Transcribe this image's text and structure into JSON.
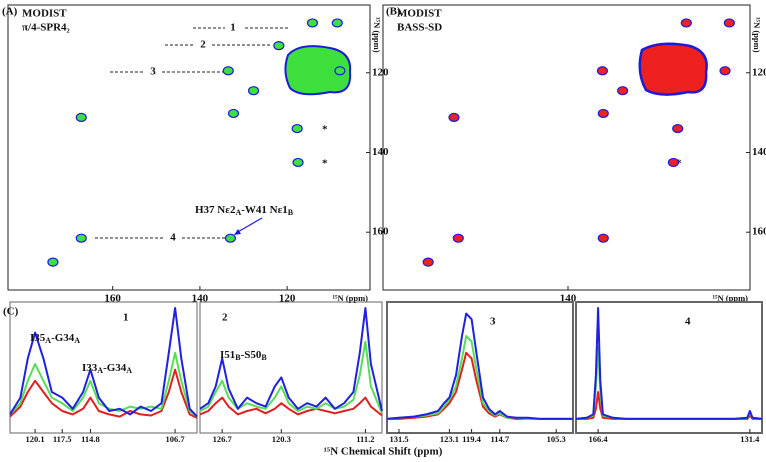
{
  "panels": {
    "A": {
      "label": "(A)",
      "legend": [
        {
          "name": "MODIST",
          "color": "#1c1cd8"
        },
        {
          "name": "π/4-SPR4₂",
          "color": "#2fd02f"
        }
      ],
      "xlim": [
        184,
        101
      ],
      "xticks": [
        160,
        140,
        120
      ],
      "ylim": [
        103,
        174.5
      ],
      "yticks": [
        120,
        140,
        160
      ],
      "x_label": "¹⁵N (ppm)",
      "y_label": "¹⁵N (ppm)",
      "peak_color": "#3ee03e",
      "peaks": [
        {
          "x": 114.2,
          "y": 107.5
        },
        {
          "x": 108.5,
          "y": 107.5
        },
        {
          "x": 121.9,
          "y": 113.2
        },
        {
          "x": 133.5,
          "y": 119.5
        },
        {
          "x": 127.7,
          "y": 124.5
        },
        {
          "x": 107.9,
          "y": 119.5
        },
        {
          "x": 132.3,
          "y": 130.2
        },
        {
          "x": 167.2,
          "y": 131.2
        },
        {
          "x": 117.7,
          "y": 134
        },
        {
          "x": 117.5,
          "y": 142.5
        },
        {
          "x": 133,
          "y": 161.5
        },
        {
          "x": 167.2,
          "y": 161.5
        },
        {
          "x": 173.7,
          "y": 167.5
        }
      ],
      "annotations": [
        "1",
        "2",
        "3",
        "4"
      ],
      "stars": [
        "*",
        "*"
      ],
      "assignment": [
        {
          "text": "H37 Nε2"
        },
        {
          "sub": "A"
        },
        {
          "text": "-W41 Nε1"
        },
        {
          "sub": "B"
        }
      ]
    },
    "B": {
      "label": "(B)",
      "legend": [
        {
          "name": "MODIST",
          "color": "#1c1cd8"
        },
        {
          "name": "BASS-SD",
          "color": "#e01c1c"
        }
      ],
      "xlim": [
        183,
        97.7
      ],
      "xticks": [
        140
      ],
      "ylim": [
        103,
        174.5
      ],
      "yticks": [
        120,
        140,
        160
      ],
      "x_label": "¹⁵N (ppm)",
      "y_label": "¹⁵N (ppm)",
      "peak_color": "#ee2020",
      "peaks": [
        {
          "x": 112.5,
          "y": 107.5
        },
        {
          "x": 102.5,
          "y": 107.5
        },
        {
          "x": 132,
          "y": 119.5
        },
        {
          "x": 127.3,
          "y": 124.5
        },
        {
          "x": 103.5,
          "y": 119.5
        },
        {
          "x": 131.8,
          "y": 130.2
        },
        {
          "x": 166.5,
          "y": 131.2
        },
        {
          "x": 114.5,
          "y": 134
        },
        {
          "x": 115.5,
          "y": 142.5
        },
        {
          "x": 131.8,
          "y": 161.5
        },
        {
          "x": 165.5,
          "y": 161.5
        },
        {
          "x": 172.5,
          "y": 167.5
        }
      ],
      "stars": [
        "*",
        "*"
      ]
    },
    "C": {
      "label": "(C)",
      "x_label": "¹⁵N Chemical Shift (ppm)",
      "ylim": [
        0,
        100
      ],
      "peak_labels": [
        [
          {
            "text": "I35"
          },
          {
            "sub": "A"
          },
          {
            "text": "-G34"
          },
          {
            "sub": "A"
          }
        ],
        [
          {
            "text": "I33"
          },
          {
            "sub": "A"
          },
          {
            "text": "-G34"
          },
          {
            "sub": "A"
          }
        ],
        [
          {
            "text": "I51"
          },
          {
            "sub": "B"
          },
          {
            "text": "-S50"
          },
          {
            "sub": "B"
          }
        ]
      ],
      "strips": [
        {
          "label": "1",
          "xlim": [
            122.5,
            104.6
          ],
          "xticks": [
            120.1,
            117.5,
            114.8,
            106.7
          ],
          "x": [
            122.5,
            121.5,
            120.8,
            120.1,
            119.3,
            118.5,
            117.5,
            116.5,
            115.5,
            114.8,
            114.0,
            113,
            112,
            111,
            110,
            109,
            108,
            107.3,
            106.7,
            106.1,
            105.3,
            104.6
          ],
          "series": [
            {
              "color": "#2020e0",
              "values": [
                5,
                20,
                55,
                78,
                55,
                25,
                20,
                10,
                25,
                45,
                20,
                8,
                10,
                5,
                12,
                8,
                15,
                60,
                100,
                55,
                10,
                3
              ]
            },
            {
              "color": "#55dd55",
              "values": [
                5,
                15,
                35,
                50,
                35,
                20,
                15,
                8,
                20,
                35,
                15,
                10,
                8,
                12,
                10,
                12,
                10,
                35,
                60,
                35,
                8,
                3
              ]
            },
            {
              "color": "#e02020",
              "values": [
                3,
                12,
                25,
                35,
                25,
                15,
                8,
                5,
                10,
                20,
                8,
                5,
                3,
                8,
                5,
                4,
                8,
                25,
                45,
                25,
                5,
                2
              ]
            }
          ]
        },
        {
          "label": "2",
          "xlim": [
            129.1,
            109.4
          ],
          "xticks": [
            126.7,
            120.3,
            111.2
          ],
          "x": [
            129.1,
            128.2,
            127.4,
            126.7,
            126,
            125,
            124,
            123,
            122,
            121,
            120.3,
            119.5,
            118.5,
            117.5,
            116.5,
            115.5,
            114.5,
            113.5,
            112.5,
            111.8,
            111.2,
            110.6,
            109.4
          ],
          "series": [
            {
              "color": "#2020e0",
              "values": [
                10,
                15,
                30,
                55,
                28,
                10,
                20,
                15,
                12,
                30,
                38,
                20,
                10,
                15,
                12,
                20,
                10,
                15,
                25,
                60,
                100,
                50,
                8
              ]
            },
            {
              "color": "#55dd55",
              "values": [
                8,
                12,
                25,
                35,
                20,
                10,
                15,
                12,
                10,
                20,
                30,
                15,
                8,
                12,
                10,
                15,
                10,
                12,
                18,
                40,
                70,
                30,
                6
              ]
            },
            {
              "color": "#e02020",
              "values": [
                5,
                8,
                15,
                20,
                12,
                5,
                8,
                10,
                6,
                10,
                15,
                10,
                5,
                8,
                10,
                8,
                6,
                8,
                10,
                15,
                20,
                12,
                4
              ]
            }
          ]
        },
        {
          "label": "3",
          "xlim": [
            133.5,
            102.5
          ],
          "xticks": [
            131.5,
            123.1,
            119.4,
            114.7,
            105.3
          ],
          "x": [
            133.5,
            131.5,
            129,
            127,
            125,
            124,
            123.1,
            122,
            121,
            120.3,
            119.4,
            118.6,
            117.5,
            116.5,
            115.5,
            114.7,
            113.5,
            112,
            110,
            108,
            106,
            105.3,
            104,
            102.5
          ],
          "series": [
            {
              "color": "#2020e0",
              "values": [
                1,
                2,
                3,
                5,
                8,
                15,
                20,
                40,
                75,
                95,
                90,
                60,
                20,
                10,
                5,
                8,
                3,
                2,
                2,
                1,
                1,
                1,
                1,
                1
              ]
            },
            {
              "color": "#55dd55",
              "values": [
                1,
                2,
                3,
                4,
                6,
                12,
                18,
                30,
                55,
                75,
                70,
                45,
                15,
                8,
                4,
                6,
                2,
                2,
                1,
                1,
                1,
                1,
                1,
                1
              ]
            },
            {
              "color": "#e02020",
              "values": [
                1,
                1,
                2,
                3,
                5,
                10,
                15,
                25,
                45,
                60,
                55,
                35,
                12,
                6,
                3,
                5,
                2,
                1,
                1,
                1,
                1,
                1,
                1,
                1
              ]
            }
          ]
        },
        {
          "label": "4",
          "xlim": [
            171.5,
            128.6
          ],
          "xticks": [
            166.4,
            131.4
          ],
          "x": [
            171.5,
            169,
            167.5,
            166.9,
            166.4,
            165.9,
            165.3,
            163,
            160,
            155,
            150,
            145,
            140,
            135,
            132,
            131.4,
            130.8,
            128.6
          ],
          "series": [
            {
              "color": "#2020e0",
              "values": [
                1,
                2,
                5,
                40,
                100,
                35,
                5,
                2,
                1,
                1,
                1,
                1,
                1,
                1,
                2,
                8,
                2,
                1
              ]
            },
            {
              "color": "#55dd55",
              "values": [
                1,
                2,
                4,
                30,
                65,
                25,
                4,
                2,
                1,
                1,
                1,
                1,
                1,
                1,
                2,
                6,
                2,
                1
              ]
            },
            {
              "color": "#e02020",
              "values": [
                1,
                1,
                2,
                10,
                25,
                10,
                2,
                1,
                1,
                1,
                1,
                1,
                1,
                1,
                1,
                4,
                1,
                1
              ]
            }
          ]
        }
      ]
    }
  }
}
